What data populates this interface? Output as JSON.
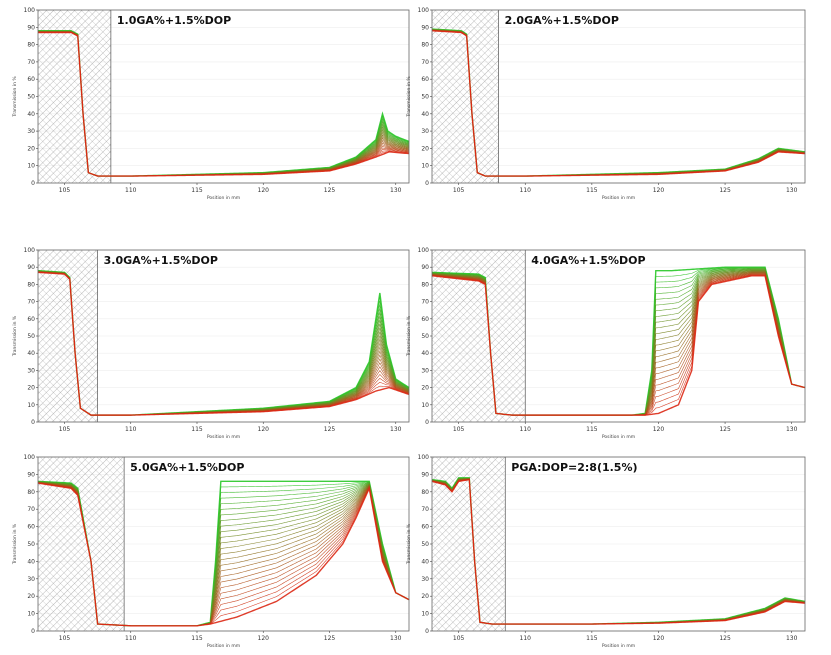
{
  "figure": {
    "description_free": true
  },
  "chart_data": [
    {
      "type": "line",
      "title": "1.0GA%+1.5%DOP",
      "xlabel": "Position in mm",
      "ylabel": "Transmission in %",
      "xlim": [
        103,
        131
      ],
      "ylim": [
        0,
        100
      ],
      "x_ticks": [
        105,
        110,
        115,
        120,
        125,
        130
      ],
      "y_ticks": [
        0,
        10,
        20,
        30,
        40,
        50,
        60,
        70,
        80,
        90,
        100
      ],
      "hatched_region_end": 108.5,
      "series_profiles": [
        {
          "name": "early (green)",
          "points": [
            [
              103,
              88
            ],
            [
              105.5,
              88
            ],
            [
              106,
              86
            ],
            [
              106.4,
              40
            ],
            [
              106.8,
              6
            ],
            [
              107.5,
              4
            ],
            [
              110,
              4
            ],
            [
              115,
              5
            ],
            [
              120,
              6
            ],
            [
              125,
              9
            ],
            [
              127,
              15
            ],
            [
              128.5,
              25
            ],
            [
              129,
              40
            ],
            [
              129.4,
              30
            ],
            [
              130,
              27
            ],
            [
              131,
              24
            ]
          ]
        },
        {
          "name": "late (red)",
          "points": [
            [
              103,
              87
            ],
            [
              105.5,
              87
            ],
            [
              106,
              85
            ],
            [
              106.4,
              40
            ],
            [
              106.8,
              6
            ],
            [
              107.5,
              4
            ],
            [
              110,
              4
            ],
            [
              115,
              4.5
            ],
            [
              120,
              5
            ],
            [
              125,
              7
            ],
            [
              127,
              11
            ],
            [
              128.5,
              15
            ],
            [
              129.5,
              18
            ],
            [
              131,
              17
            ]
          ]
        }
      ]
    },
    {
      "type": "line",
      "title": "2.0GA%+1.5%DOP",
      "xlabel": "Position in mm",
      "ylabel": "Transmission in %",
      "xlim": [
        103,
        131
      ],
      "ylim": [
        0,
        100
      ],
      "x_ticks": [
        105,
        110,
        115,
        120,
        125,
        130
      ],
      "y_ticks": [
        0,
        10,
        20,
        30,
        40,
        50,
        60,
        70,
        80,
        90,
        100
      ],
      "hatched_region_end": 108.0,
      "series_profiles": [
        {
          "name": "early (green)",
          "points": [
            [
              103,
              89
            ],
            [
              105.2,
              88
            ],
            [
              105.6,
              86
            ],
            [
              106,
              40
            ],
            [
              106.4,
              6
            ],
            [
              107,
              4
            ],
            [
              110,
              4
            ],
            [
              115,
              5
            ],
            [
              120,
              6
            ],
            [
              125,
              8
            ],
            [
              127.5,
              14
            ],
            [
              129,
              20
            ],
            [
              131,
              18
            ]
          ]
        },
        {
          "name": "late (red)",
          "points": [
            [
              103,
              88
            ],
            [
              105.2,
              87
            ],
            [
              105.6,
              85
            ],
            [
              106,
              40
            ],
            [
              106.4,
              6
            ],
            [
              107,
              4
            ],
            [
              110,
              4
            ],
            [
              115,
              4.5
            ],
            [
              120,
              5
            ],
            [
              125,
              7
            ],
            [
              127.5,
              12
            ],
            [
              129,
              18
            ],
            [
              131,
              17
            ]
          ]
        }
      ]
    },
    {
      "type": "line",
      "title": "3.0GA%+1.5%DOP",
      "xlabel": "Position in mm",
      "ylabel": "Transmission in %",
      "xlim": [
        103,
        131
      ],
      "ylim": [
        0,
        100
      ],
      "x_ticks": [
        105,
        110,
        115,
        120,
        125,
        130
      ],
      "y_ticks": [
        0,
        10,
        20,
        30,
        40,
        50,
        60,
        70,
        80,
        90,
        100
      ],
      "hatched_region_end": 107.5,
      "series_profiles": [
        {
          "name": "early (green)",
          "points": [
            [
              103,
              88
            ],
            [
              105,
              87
            ],
            [
              105.4,
              84
            ],
            [
              105.8,
              40
            ],
            [
              106.2,
              8
            ],
            [
              107,
              4
            ],
            [
              110,
              4
            ],
            [
              115,
              6
            ],
            [
              120,
              8
            ],
            [
              125,
              12
            ],
            [
              127,
              20
            ],
            [
              128,
              35
            ],
            [
              128.8,
              75
            ],
            [
              129.3,
              45
            ],
            [
              130,
              25
            ],
            [
              131,
              20
            ]
          ]
        },
        {
          "name": "late (red)",
          "points": [
            [
              103,
              87
            ],
            [
              105,
              86
            ],
            [
              105.4,
              83
            ],
            [
              105.8,
              40
            ],
            [
              106.2,
              8
            ],
            [
              107,
              4
            ],
            [
              110,
              4
            ],
            [
              115,
              5
            ],
            [
              120,
              6
            ],
            [
              125,
              9
            ],
            [
              127,
              13
            ],
            [
              128.5,
              18
            ],
            [
              129.5,
              20
            ],
            [
              131,
              16
            ]
          ]
        }
      ]
    },
    {
      "type": "line",
      "title": "4.0GA%+1.5%DOP",
      "xlabel": "Position in mm",
      "ylabel": "Transmission in %",
      "xlim": [
        103,
        131
      ],
      "ylim": [
        0,
        100
      ],
      "x_ticks": [
        105,
        110,
        115,
        120,
        125,
        130
      ],
      "y_ticks": [
        0,
        10,
        20,
        30,
        40,
        50,
        60,
        70,
        80,
        90,
        100
      ],
      "hatched_region_end": 110.0,
      "series_profiles": [
        {
          "name": "early (green)",
          "points": [
            [
              103,
              87
            ],
            [
              106.5,
              86
            ],
            [
              107,
              84
            ],
            [
              107.4,
              40
            ],
            [
              107.8,
              5
            ],
            [
              109,
              4
            ],
            [
              115,
              4
            ],
            [
              118,
              4
            ],
            [
              119,
              5
            ],
            [
              119.5,
              30
            ],
            [
              119.8,
              88
            ],
            [
              121,
              88
            ],
            [
              125,
              90
            ],
            [
              128,
              90
            ],
            [
              129,
              60
            ],
            [
              130,
              22
            ],
            [
              131,
              20
            ]
          ]
        },
        {
          "name": "late (red)",
          "points": [
            [
              103,
              85
            ],
            [
              106.5,
              82
            ],
            [
              107,
              80
            ],
            [
              107.4,
              40
            ],
            [
              107.8,
              5
            ],
            [
              109,
              4
            ],
            [
              115,
              4
            ],
            [
              119,
              4
            ],
            [
              120,
              5
            ],
            [
              121.5,
              10
            ],
            [
              122.5,
              30
            ],
            [
              123,
              70
            ],
            [
              124,
              80
            ],
            [
              127,
              85
            ],
            [
              128,
              85
            ],
            [
              129,
              50
            ],
            [
              130,
              22
            ],
            [
              131,
              20
            ]
          ]
        }
      ]
    },
    {
      "type": "line",
      "title": "5.0GA%+1.5%DOP",
      "xlabel": "Position in mm",
      "ylabel": "Transmission in %",
      "xlim": [
        103,
        131
      ],
      "ylim": [
        0,
        100
      ],
      "x_ticks": [
        105,
        110,
        115,
        120,
        125,
        130
      ],
      "y_ticks": [
        0,
        10,
        20,
        30,
        40,
        50,
        60,
        70,
        80,
        90,
        100
      ],
      "hatched_region_end": 109.5,
      "series_profiles": [
        {
          "name": "early (green)",
          "points": [
            [
              103,
              86
            ],
            [
              105.5,
              85
            ],
            [
              106,
              82
            ],
            [
              107,
              40
            ],
            [
              107.5,
              4
            ],
            [
              110,
              3
            ],
            [
              115,
              3
            ],
            [
              116,
              5
            ],
            [
              116.4,
              40
            ],
            [
              116.8,
              86
            ],
            [
              120,
              86
            ],
            [
              125,
              86
            ],
            [
              128,
              86
            ],
            [
              129,
              50
            ],
            [
              130,
              22
            ],
            [
              131,
              18
            ]
          ]
        },
        {
          "name": "late (red)",
          "points": [
            [
              103,
              85
            ],
            [
              105.5,
              82
            ],
            [
              106,
              78
            ],
            [
              107,
              40
            ],
            [
              107.5,
              4
            ],
            [
              110,
              3
            ],
            [
              115,
              3
            ],
            [
              116,
              4
            ],
            [
              118,
              8
            ],
            [
              121,
              17
            ],
            [
              124,
              32
            ],
            [
              126,
              50
            ],
            [
              127,
              65
            ],
            [
              128,
              82
            ],
            [
              129,
              40
            ],
            [
              130,
              22
            ],
            [
              131,
              18
            ]
          ]
        }
      ]
    },
    {
      "type": "line",
      "title": "PGA:DOP=2:8(1.5%)",
      "xlabel": "Position in mm",
      "ylabel": "Transmission in %",
      "xlim": [
        103,
        131
      ],
      "ylim": [
        0,
        100
      ],
      "x_ticks": [
        105,
        110,
        115,
        120,
        125,
        130
      ],
      "y_ticks": [
        0,
        10,
        20,
        30,
        40,
        50,
        60,
        70,
        80,
        90,
        100
      ],
      "hatched_region_end": 108.5,
      "series_profiles": [
        {
          "name": "early (green)",
          "points": [
            [
              103,
              87
            ],
            [
              104,
              86
            ],
            [
              104.5,
              82
            ],
            [
              105,
              88
            ],
            [
              105.8,
              88
            ],
            [
              106.2,
              40
            ],
            [
              106.6,
              5
            ],
            [
              107.5,
              4
            ],
            [
              110,
              4
            ],
            [
              115,
              4
            ],
            [
              120,
              5
            ],
            [
              125,
              7
            ],
            [
              128,
              13
            ],
            [
              129.5,
              19
            ],
            [
              131,
              17
            ]
          ]
        },
        {
          "name": "late (red)",
          "points": [
            [
              103,
              86
            ],
            [
              104,
              84
            ],
            [
              104.5,
              80
            ],
            [
              105,
              86
            ],
            [
              105.8,
              87
            ],
            [
              106.2,
              40
            ],
            [
              106.6,
              5
            ],
            [
              107.5,
              4
            ],
            [
              110,
              4
            ],
            [
              115,
              4
            ],
            [
              120,
              4.5
            ],
            [
              125,
              6
            ],
            [
              128,
              11
            ],
            [
              129.5,
              17
            ],
            [
              131,
              16
            ]
          ]
        }
      ]
    }
  ]
}
